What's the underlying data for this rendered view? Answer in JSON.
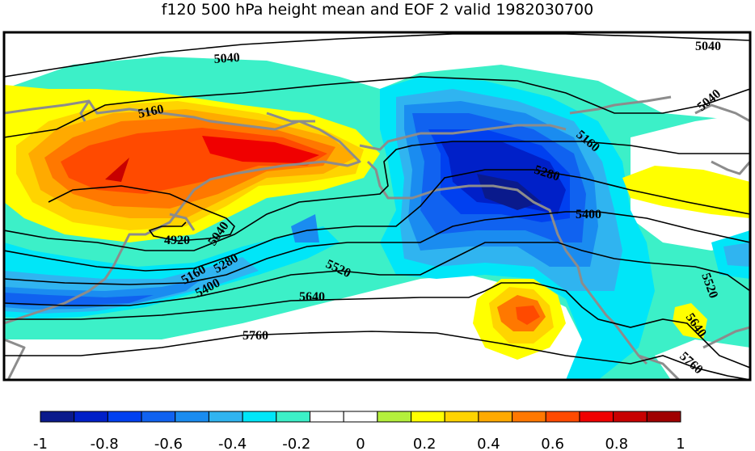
{
  "title": "f120 500 hPa height mean and EOF 2 valid 1982030700",
  "contour_labels": {
    "c5040_a": "5040",
    "c5040_b": "5040",
    "c5040_c": "5040",
    "c5040_d": "5040",
    "c5160_a": "5160",
    "c5160_b": "5160",
    "c5160_c": "5160",
    "c5280_a": "5280",
    "c5280_b": "5280",
    "c5400_a": "5400",
    "c5400_b": "5400",
    "c5520_a": "5520",
    "c5520_b": "5520",
    "c5640_a": "5640",
    "c5640_b": "5640",
    "c5760_a": "5760",
    "c5760_b": "5760",
    "c4920": "4920"
  },
  "colorbar": {
    "ticks": [
      "-1",
      "-0.8",
      "-0.6",
      "-0.4",
      "-0.2",
      "0",
      "0.2",
      "0.4",
      "0.6",
      "0.8",
      "1"
    ],
    "colors": [
      "#0a1a8c",
      "#0020c8",
      "#0040f0",
      "#1062f0",
      "#1a8cf0",
      "#30b4f0",
      "#00e6f8",
      "#3cf0c8",
      "#ffffff",
      "#ffffff",
      "#b4f03c",
      "#ffff00",
      "#ffd400",
      "#ffaa00",
      "#ff7800",
      "#ff4a00",
      "#f00000",
      "#c80000",
      "#a00000"
    ]
  },
  "colors": {
    "coast": "#8c8c8c",
    "contour": "#000000"
  }
}
